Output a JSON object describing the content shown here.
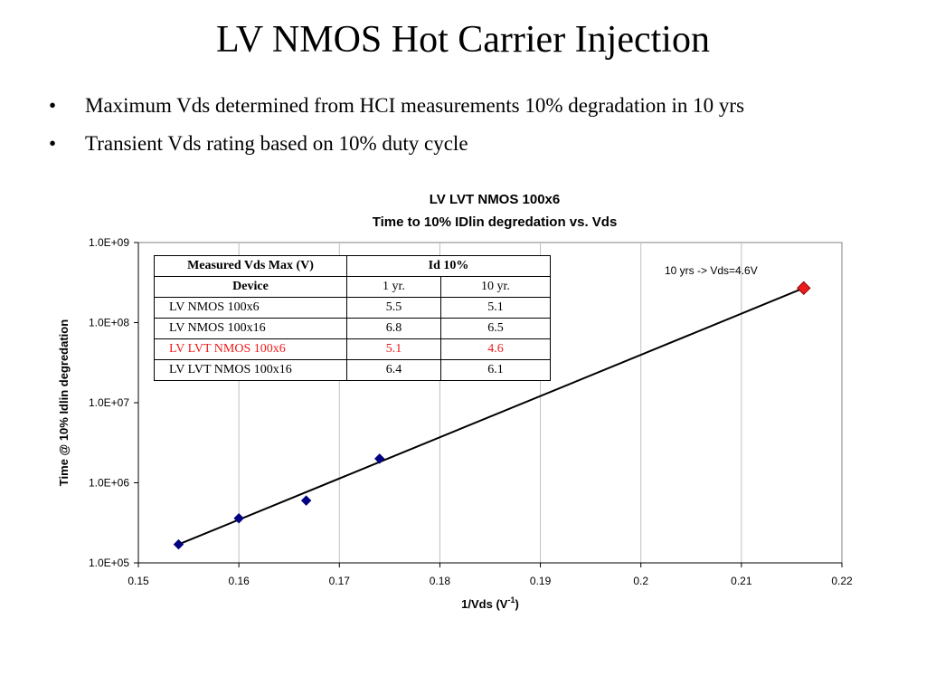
{
  "slide": {
    "title": "LV NMOS Hot Carrier Injection",
    "bullets": [
      "Maximum Vds determined from HCI measurements 10% degradation in 10 yrs",
      "Transient Vds rating based on 10% duty cycle"
    ],
    "bullet_glyph": "•"
  },
  "chart_data": {
    "type": "scatter",
    "title": "LV LVT NMOS 100x6",
    "subtitle": "Time to 10% IDlin degredation vs. Vds",
    "xlabel": "1/Vds (V",
    "xlabel_sup": "-1",
    "xlabel_end": ")",
    "ylabel": "Time @ 10% Idlin degredation",
    "xlim": [
      0.15,
      0.22
    ],
    "ylim": [
      100000,
      1000000000
    ],
    "yscale": "log",
    "x_ticks": [
      0.15,
      0.16,
      0.17,
      0.18,
      0.19,
      0.2,
      0.21,
      0.22
    ],
    "x_tick_labels": [
      "0.15",
      "0.16",
      "0.17",
      "0.18",
      "0.19",
      "0.2",
      "0.21",
      "0.22"
    ],
    "y_ticks": [
      100000,
      1000000,
      10000000,
      100000000,
      1000000000
    ],
    "y_tick_labels": [
      "1.0E+05",
      "1.0E+06",
      "1.0E+07",
      "1.0E+08",
      "1.0E+09"
    ],
    "grid": "vertical",
    "series": [
      {
        "marker": "diamond",
        "color": "#000080",
        "points": [
          {
            "x": 0.154,
            "y": 170000
          },
          {
            "x": 0.16,
            "y": 360000
          },
          {
            "x": 0.1667,
            "y": 600000
          },
          {
            "x": 0.174,
            "y": 2000000
          }
        ]
      },
      {
        "marker": "diamond",
        "color": "#ee1c1c",
        "points": [
          {
            "x": 0.2162,
            "y": 270000000
          }
        ]
      }
    ],
    "trendline": {
      "color": "#000000",
      "points": [
        {
          "x": 0.154,
          "y": 170000
        },
        {
          "x": 0.2162,
          "y": 270000000
        }
      ]
    },
    "annotation": "10 yrs ->  Vds=4.6V",
    "table": {
      "header": [
        "Measured Vds Max (V)",
        "Id 10%"
      ],
      "subheader": [
        "Device",
        "1 yr.",
        "10 yr."
      ],
      "rows": [
        {
          "device": "LV NMOS 100x6",
          "yr1": "5.5",
          "yr10": "5.1",
          "highlight": false
        },
        {
          "device": "LV NMOS 100x16",
          "yr1": "6.8",
          "yr10": "6.5",
          "highlight": false
        },
        {
          "device": "LV LVT NMOS 100x6",
          "yr1": "5.1",
          "yr10": "4.6",
          "highlight": true
        },
        {
          "device": "LV LVT NMOS 100x16",
          "yr1": "6.4",
          "yr10": "6.1",
          "highlight": false
        }
      ],
      "highlight_color": "#ee1c1c"
    }
  }
}
